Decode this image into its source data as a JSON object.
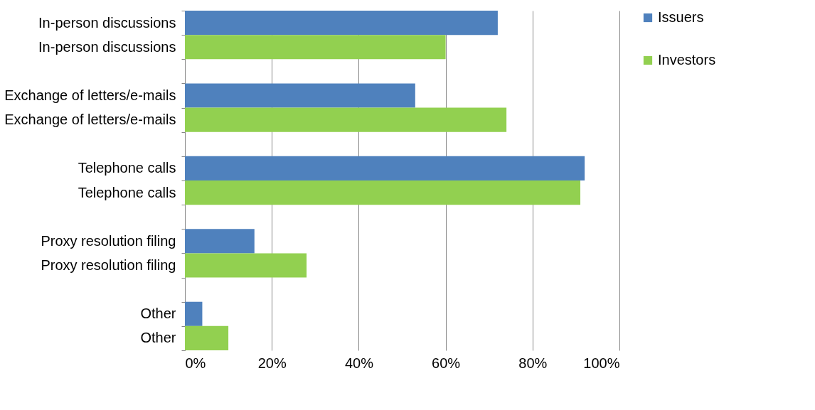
{
  "chart_data": {
    "type": "bar",
    "orientation": "horizontal",
    "categories": [
      "In-person discussions",
      "In-person discussions",
      null,
      "Exchange of letters/e-mails",
      "Exchange of letters/e-mails",
      null,
      "Telephone calls",
      "Telephone calls",
      null,
      "Proxy resolution filing",
      "Proxy resolution filing",
      null,
      "Other",
      "Other"
    ],
    "series": [
      {
        "name": "Issuers",
        "color": "#4f81bd",
        "values": [
          72,
          null,
          null,
          53,
          null,
          null,
          92,
          null,
          null,
          16,
          null,
          null,
          4,
          null
        ]
      },
      {
        "name": "Investors",
        "color": "#92d050",
        "values": [
          null,
          60,
          null,
          null,
          74,
          null,
          null,
          91,
          null,
          null,
          28,
          null,
          null,
          10
        ]
      }
    ],
    "xlim": [
      0,
      100
    ],
    "xticks": [
      {
        "value": 0,
        "label": "0%"
      },
      {
        "value": 20,
        "label": "20%"
      },
      {
        "value": 40,
        "label": "40%"
      },
      {
        "value": 60,
        "label": "60%"
      },
      {
        "value": 80,
        "label": "80%"
      },
      {
        "value": 100,
        "label": "100%"
      }
    ],
    "grid": "x",
    "legend": "right"
  }
}
